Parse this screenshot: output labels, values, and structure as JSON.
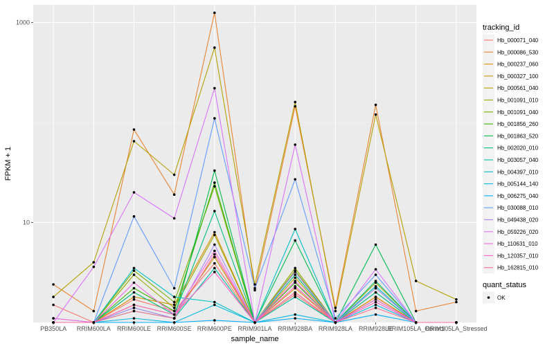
{
  "chart_data": {
    "type": "line",
    "xlabel": "sample_name",
    "ylabel": "FPKM + 1",
    "y_scale": "log10",
    "ylim": [
      1,
      1500
    ],
    "y_ticks": [
      {
        "value": 10,
        "label": "10"
      },
      {
        "value": 1000,
        "label": "1000"
      }
    ],
    "grid": true,
    "legend_position": "right",
    "categories": [
      "PB350LA",
      "RRIM600LA",
      "RRIM600LE",
      "RRIM600SE",
      "RRIM600PE",
      "RRIM901LA",
      "RRIM928BA",
      "RRIM928LA",
      "RRIM928LE",
      "RRIM105LA_Control",
      "RRIM105LA_Stressed"
    ],
    "legend_title": "tracking_id",
    "series": [
      {
        "name": "Hb_000071_040",
        "color": "#F8766D",
        "values": [
          1.5,
          1.0,
          1.7,
          1.3,
          3.9,
          1.0,
          1.9,
          1.0,
          1.8,
          1.0,
          1.0
        ]
      },
      {
        "name": "Hb_000086_530",
        "color": "#EA8331",
        "values": [
          2.4,
          1.3,
          85,
          19,
          1250,
          2.1,
          145,
          1.4,
          150,
          1.3,
          1.6
        ]
      },
      {
        "name": "Hb_000237_060",
        "color": "#DC8E00",
        "values": [
          1.0,
          1.0,
          1.8,
          1.5,
          8.0,
          1.0,
          2.2,
          1.0,
          1.8,
          1.0,
          1.0
        ]
      },
      {
        "name": "Hb_000327_100",
        "color": "#C99800",
        "values": [
          1.0,
          1.0,
          1.5,
          1.2,
          4.5,
          1.0,
          2.8,
          1.0,
          2.0,
          1.0,
          1.0
        ]
      },
      {
        "name": "Hb_000561_040",
        "color": "#B3A000",
        "values": [
          1.8,
          4.0,
          65,
          30,
          560,
          2.4,
          160,
          1.3,
          120,
          2.6,
          1.7
        ]
      },
      {
        "name": "Hb_001091_010",
        "color": "#99A800",
        "values": [
          1.0,
          1.0,
          3.0,
          1.4,
          7.5,
          1.0,
          3.5,
          1.0,
          2.5,
          1.0,
          1.0
        ]
      },
      {
        "name": "Hb_001091_040",
        "color": "#74B000",
        "values": [
          1.0,
          1.0,
          3.3,
          1.6,
          23,
          1.0,
          3.3,
          1.0,
          2.2,
          1.0,
          1.0
        ]
      },
      {
        "name": "Hb_001856_260",
        "color": "#39B600",
        "values": [
          1.0,
          1.0,
          2.2,
          1.3,
          25,
          1.0,
          2.5,
          1.0,
          1.7,
          1.0,
          1.0
        ]
      },
      {
        "name": "Hb_001863_520",
        "color": "#00BB4E",
        "values": [
          1.0,
          1.0,
          1.4,
          1.1,
          33,
          1.0,
          6.6,
          1.0,
          6.0,
          1.0,
          1.0
        ]
      },
      {
        "name": "Hb_002020_010",
        "color": "#00BF7D",
        "values": [
          1.0,
          1.0,
          2.0,
          1.2,
          13,
          1.0,
          3.0,
          1.0,
          2.6,
          1.0,
          1.0
        ]
      },
      {
        "name": "Hb_003057_040",
        "color": "#00C1A3",
        "values": [
          1.0,
          1.0,
          1.3,
          1.1,
          3.5,
          1.0,
          1.8,
          1.0,
          2.0,
          1.0,
          1.0
        ]
      },
      {
        "name": "Hb_004397_010",
        "color": "#00BFC4",
        "values": [
          1.0,
          1.0,
          3.5,
          1.8,
          1.6,
          1.0,
          8.6,
          1.0,
          2.3,
          1.0,
          1.0
        ]
      },
      {
        "name": "Hb_005144_140",
        "color": "#00B9E3",
        "values": [
          1.0,
          1.0,
          1.1,
          1.0,
          1.5,
          1.0,
          1.2,
          1.0,
          1.5,
          1.0,
          1.0
        ]
      },
      {
        "name": "Hb_006275_040",
        "color": "#00ADFA",
        "values": [
          1.0,
          1.0,
          1.0,
          1.0,
          1.05,
          1.0,
          1.1,
          1.0,
          1.2,
          1.0,
          1.0
        ]
      },
      {
        "name": "Hb_030088_010",
        "color": "#619CFF",
        "values": [
          1.1,
          1.0,
          11.5,
          2.2,
          110,
          2.2,
          27,
          1.1,
          3.0,
          1.0,
          1.0
        ]
      },
      {
        "name": "Hb_049438_020",
        "color": "#AE87FF",
        "values": [
          1.0,
          1.0,
          1.4,
          1.1,
          6.0,
          1.0,
          3.2,
          1.0,
          2.2,
          1.0,
          1.0
        ]
      },
      {
        "name": "Hb_059226_020",
        "color": "#DB72FB",
        "values": [
          1.0,
          3.6,
          20,
          11,
          220,
          1.0,
          60,
          1.0,
          3.4,
          1.0,
          1.0
        ]
      },
      {
        "name": "Hb_110631_010",
        "color": "#F564E3",
        "values": [
          1.1,
          1.0,
          2.5,
          1.2,
          5.2,
          1.0,
          2.6,
          1.0,
          1.7,
          1.0,
          1.0
        ]
      },
      {
        "name": "Hb_120357_010",
        "color": "#FF61C3",
        "values": [
          1.0,
          1.0,
          1.5,
          1.2,
          3.2,
          1.0,
          2.3,
          1.0,
          1.6,
          1.0,
          1.0
        ]
      },
      {
        "name": "Hb_162815_010",
        "color": "#FF6C91",
        "values": [
          1.0,
          1.0,
          1.3,
          1.1,
          4.8,
          1.0,
          2.0,
          1.0,
          1.4,
          1.0,
          1.0
        ]
      }
    ],
    "shape_legend": {
      "title": "quant_status",
      "items": [
        {
          "label": "OK",
          "shape": "point",
          "color": "#000000"
        }
      ]
    }
  }
}
